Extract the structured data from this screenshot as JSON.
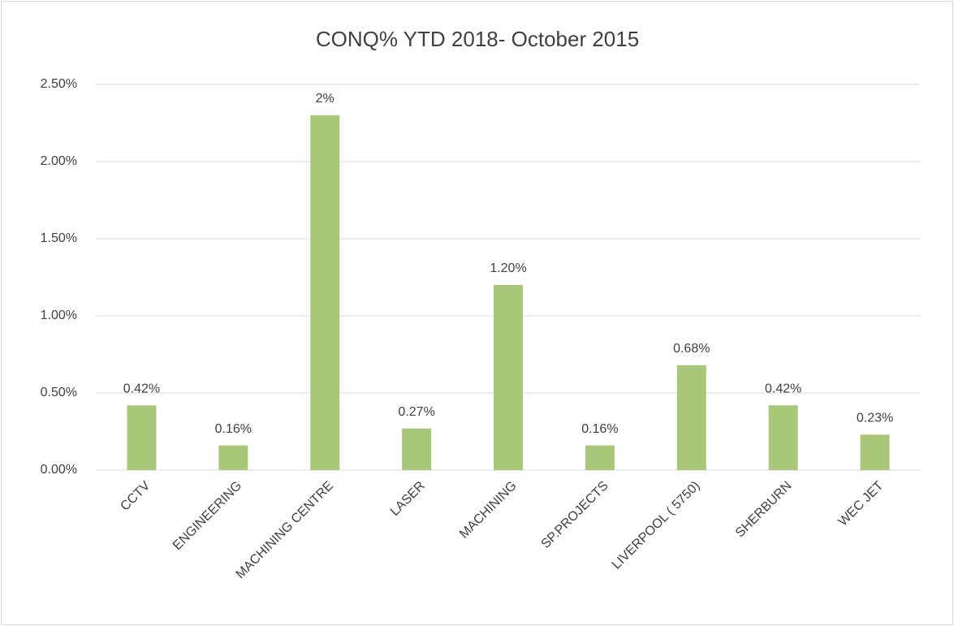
{
  "chart_data": {
    "type": "bar",
    "title": "CONQ% YTD 2018- October 2015",
    "categories": [
      "CCTV",
      "ENGINEERING",
      "MACHINING CENTRE",
      "LASER",
      "MACHINING",
      "SP.PROJECTS",
      "LIVERPOOL ( 5750)",
      "SHERBURN",
      "WEC JET"
    ],
    "values": [
      0.42,
      0.16,
      2.3,
      0.27,
      1.2,
      0.16,
      0.68,
      0.42,
      0.23
    ],
    "value_labels": [
      "0.42%",
      "0.16%",
      "2%",
      "0.27%",
      "1.20%",
      "0.16%",
      "0.68%",
      "0.42%",
      "0.23%"
    ],
    "color": "#a9c779",
    "ylim": [
      0,
      2.5
    ],
    "yticks": [
      {
        "value": 0,
        "label": "0.00%"
      },
      {
        "value": 0.5,
        "label": "0.50%"
      },
      {
        "value": 1,
        "label": "1.00%"
      },
      {
        "value": 1.5,
        "label": "1.50%"
      },
      {
        "value": 2,
        "label": "2.00%"
      },
      {
        "value": 2.5,
        "label": "2.50%"
      }
    ],
    "grid": true
  }
}
